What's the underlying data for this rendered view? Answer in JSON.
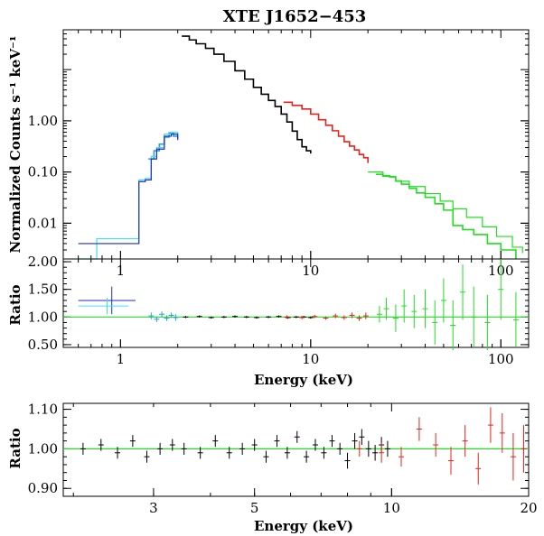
{
  "chart_data": [
    {
      "type": "line",
      "panel": "spectrum",
      "title": "XTE J1652−453",
      "ylabel": "Normalized Counts s⁻¹ keV⁻¹",
      "xlabel": "",
      "x_scale": "log",
      "y_scale": "log",
      "xlim": [
        0.5,
        140
      ],
      "ylim": [
        0.002,
        60
      ],
      "x_ticks": [
        1,
        10,
        100
      ],
      "x_tick_labels": [
        "1",
        "10",
        "100"
      ],
      "y_ticks": [
        0.01,
        0.1,
        1.0
      ],
      "y_tick_labels": [
        "0.01",
        "0.10",
        "1.00"
      ],
      "series": [
        {
          "color": "#000000",
          "kind": "data",
          "x": [
            2.1,
            2.3,
            2.5,
            2.8,
            3.1,
            3.5,
            4.0,
            4.5,
            5.0,
            5.5,
            6.0,
            6.5,
            7.0,
            7.5,
            8.0,
            8.5,
            9.0,
            9.5,
            10.0
          ],
          "y": [
            45,
            38,
            32,
            26,
            20,
            14.5,
            9.5,
            6.5,
            4.5,
            3.3,
            2.5,
            1.9,
            1.35,
            0.95,
            0.63,
            0.43,
            0.31,
            0.26,
            0.23
          ]
        },
        {
          "color": "#e8231a",
          "kind": "data",
          "x": [
            7.2,
            8,
            9,
            10,
            11,
            12,
            13,
            14,
            15,
            16,
            17,
            18,
            19,
            20
          ],
          "y": [
            2.3,
            2.0,
            1.7,
            1.35,
            1.05,
            0.82,
            0.64,
            0.5,
            0.39,
            0.32,
            0.27,
            0.22,
            0.19,
            0.15
          ]
        },
        {
          "color": "#22dd22",
          "kind": "data",
          "x": [
            22,
            24,
            26,
            28,
            30,
            33,
            36,
            40,
            45,
            50,
            56,
            63,
            72,
            85,
            100,
            120
          ],
          "y": [
            0.09,
            0.085,
            0.08,
            0.067,
            0.058,
            0.048,
            0.039,
            0.032,
            0.024,
            0.018,
            0.009,
            0.0075,
            0.006,
            0.004,
            0.003,
            0.002
          ]
        },
        {
          "color": "#2b9fe0",
          "kind": "data",
          "x": [
            1.4,
            1.5,
            1.6,
            1.7,
            1.8,
            1.9,
            2.0
          ],
          "y": [
            0.18,
            0.26,
            0.35,
            0.48,
            0.58,
            0.5,
            0.45
          ]
        },
        {
          "color": "#40e0f0",
          "kind": "model",
          "x": [
            0.6,
            0.68,
            0.75,
            1.2,
            1.25,
            1.35,
            1.45,
            1.55,
            1.7,
            1.85,
            2.0
          ],
          "y": [
            0.002,
            0.002,
            0.005,
            0.005,
            0.07,
            0.075,
            0.2,
            0.3,
            0.55,
            0.6,
            0.45
          ]
        },
        {
          "color": "#1c2bc8",
          "kind": "model",
          "x": [
            0.6,
            1.2,
            1.25,
            1.35,
            1.45,
            1.55,
            1.7,
            1.85,
            2.0
          ],
          "y": [
            0.004,
            0.004,
            0.065,
            0.07,
            0.18,
            0.28,
            0.5,
            0.55,
            0.42
          ]
        },
        {
          "color": "#22dd22",
          "kind": "model",
          "x": [
            20,
            24,
            28,
            33,
            40,
            48,
            56,
            66,
            80,
            95,
            115,
            130
          ],
          "y": [
            0.1,
            0.082,
            0.066,
            0.052,
            0.038,
            0.027,
            0.019,
            0.013,
            0.0085,
            0.0055,
            0.0034,
            0.0026
          ]
        }
      ]
    },
    {
      "type": "scatter",
      "panel": "ratio-full",
      "xlabel": "Energy (keV)",
      "ylabel": "Ratio",
      "x_scale": "log",
      "xlim": [
        0.5,
        140
      ],
      "ylim": [
        0.45,
        2.05
      ],
      "x_ticks": [
        1,
        10,
        100
      ],
      "x_tick_labels": [
        "1",
        "10",
        "100"
      ],
      "y_ticks": [
        0.5,
        1.0,
        1.5,
        2.0
      ],
      "y_tick_labels": [
        "0.50",
        "1.00",
        "1.50",
        "2.00"
      ],
      "reference_line": 1.0,
      "series": [
        {
          "color": "#1c2bc8",
          "x": [
            0.9
          ],
          "y": [
            1.3
          ],
          "xerr": [
            0.3
          ],
          "yerr": [
            0.25
          ]
        },
        {
          "color": "#40e0f0",
          "x": [
            0.85
          ],
          "y": [
            1.2
          ],
          "xerr": [
            0.25
          ],
          "yerr": [
            0.15
          ]
        },
        {
          "color": "#2b9fe0",
          "x": [
            1.45,
            1.55,
            1.65,
            1.75,
            1.85,
            1.95
          ],
          "y": [
            1.02,
            0.96,
            1.05,
            0.98,
            1.03,
            0.99
          ],
          "yerr": [
            0.06,
            0.05,
            0.05,
            0.05,
            0.05,
            0.06
          ]
        },
        {
          "color": "#000000",
          "x": [
            2.2,
            2.6,
            3.0,
            3.5,
            4.0,
            4.6,
            5.2,
            6.0,
            6.8,
            7.6,
            8.4,
            9.2,
            10.0
          ],
          "y": [
            1.0,
            1.01,
            0.99,
            1.0,
            1.01,
            1.0,
            0.99,
            1.0,
            1.01,
            0.99,
            1.0,
            1.0,
            0.99
          ],
          "yerr": [
            0.02,
            0.02,
            0.02,
            0.02,
            0.02,
            0.02,
            0.02,
            0.02,
            0.02,
            0.02,
            0.02,
            0.02,
            0.02
          ]
        },
        {
          "color": "#e8231a",
          "x": [
            7.5,
            9,
            10.5,
            12,
            13.5,
            15,
            16.5,
            18,
            19.5
          ],
          "y": [
            1.0,
            0.99,
            1.01,
            0.98,
            1.02,
            0.99,
            1.03,
            0.98,
            1.02
          ],
          "yerr": [
            0.03,
            0.03,
            0.03,
            0.03,
            0.04,
            0.04,
            0.05,
            0.05,
            0.06
          ]
        },
        {
          "color": "#22dd22",
          "x": [
            23,
            25,
            28,
            31,
            35,
            40,
            45,
            50,
            56,
            63,
            72,
            85,
            100,
            120
          ],
          "y": [
            1.05,
            1.15,
            0.98,
            1.2,
            1.1,
            1.15,
            0.9,
            1.3,
            0.85,
            1.45,
            1.0,
            0.9,
            1.5,
            0.95
          ],
          "yerr": [
            0.15,
            0.2,
            0.25,
            0.3,
            0.3,
            0.35,
            0.4,
            0.4,
            0.45,
            0.5,
            0.55,
            0.5,
            0.55,
            0.5
          ]
        }
      ]
    },
    {
      "type": "scatter",
      "panel": "ratio-zoom",
      "xlabel": "Energy (keV)",
      "ylabel": "Ratio",
      "x_scale": "log",
      "xlim": [
        1.9,
        20
      ],
      "ylim": [
        0.88,
        1.115
      ],
      "x_ticks": [
        3,
        5,
        10,
        20
      ],
      "x_tick_labels": [
        "3",
        "5",
        "10",
        "20"
      ],
      "y_ticks": [
        0.9,
        1.0,
        1.1
      ],
      "y_tick_labels": [
        "0.90",
        "1.00",
        "1.10"
      ],
      "reference_line": 1.0,
      "series": [
        {
          "color": "#000000",
          "x": [
            2.1,
            2.3,
            2.5,
            2.7,
            2.9,
            3.1,
            3.3,
            3.5,
            3.8,
            4.1,
            4.4,
            4.7,
            5.0,
            5.3,
            5.6,
            5.9,
            6.2,
            6.5,
            6.8,
            7.1,
            7.4,
            7.7,
            8.0,
            8.3,
            8.6,
            8.9,
            9.2,
            9.5,
            9.8
          ],
          "y": [
            1.0,
            1.01,
            0.99,
            1.02,
            0.98,
            1.0,
            1.01,
            1.0,
            0.99,
            1.02,
            0.99,
            1.0,
            1.01,
            0.98,
            1.02,
            0.99,
            1.03,
            0.98,
            1.01,
            0.99,
            1.02,
            1.0,
            0.97,
            1.02,
            1.03,
            1.0,
            0.99,
            1.01,
            1.0
          ],
          "yerr": [
            0.015,
            0.015,
            0.015,
            0.015,
            0.015,
            0.015,
            0.015,
            0.015,
            0.015,
            0.015,
            0.015,
            0.015,
            0.015,
            0.015,
            0.015,
            0.015,
            0.015,
            0.015,
            0.015,
            0.015,
            0.015,
            0.015,
            0.02,
            0.02,
            0.02,
            0.02,
            0.02,
            0.02,
            0.02
          ]
        },
        {
          "color": "#e8231a",
          "x": [
            8.5,
            9.5,
            10.5,
            11.5,
            12.5,
            13.5,
            14.5,
            15.5,
            16.5,
            17.5,
            18.5,
            19.5
          ],
          "y": [
            1.0,
            0.99,
            0.98,
            1.05,
            1.01,
            0.97,
            1.02,
            0.95,
            1.06,
            1.04,
            0.98,
            1.0
          ],
          "yerr": [
            0.02,
            0.025,
            0.025,
            0.03,
            0.03,
            0.035,
            0.04,
            0.04,
            0.045,
            0.05,
            0.06,
            0.06
          ]
        }
      ]
    }
  ]
}
